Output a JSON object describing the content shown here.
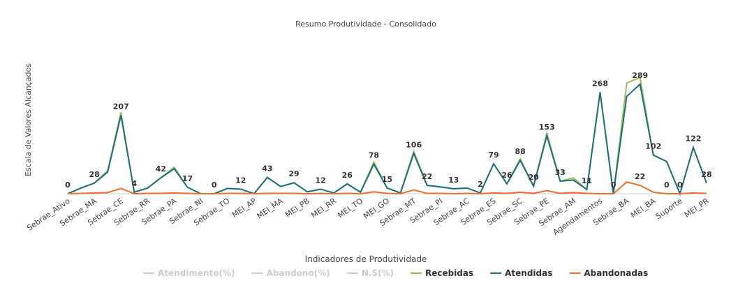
{
  "chart_data": {
    "type": "line",
    "title": "Resumo Produtividade - Consolidado",
    "x_label": "Indicadores de Produtividade",
    "y_label": "Escala de Valores Alcançados",
    "categories": [
      "Sebrae_Ativo",
      null,
      "Sebrae_MA",
      null,
      "Sebrae_CE",
      null,
      "Sebrae_RR",
      null,
      "Sebrae_PA",
      null,
      "Sebrae_NI",
      null,
      "Sebrae_TO",
      null,
      "MEI_AP",
      null,
      "MEI_MA",
      null,
      "MEI_PB",
      null,
      "MEI_RR",
      null,
      "MEI_TO",
      null,
      "MEI_GO",
      null,
      "Sebrae_MT",
      null,
      "Sebrae_PI",
      null,
      "Sebrae_AC",
      null,
      "Sebrae_ES",
      null,
      "Sebrae_SC",
      null,
      "Sebrae_PE",
      null,
      "Sebrae_AM",
      null,
      "Agendamentos",
      null,
      "Sebrae_BA",
      null,
      "MEI_BA",
      null,
      "Suporte",
      null,
      "MEI_PR"
    ],
    "ylim": [
      0,
      320
    ],
    "legend_inactive": [
      "Atendimento(%)",
      "Abandono(%)",
      "N.S(%)"
    ],
    "series": [
      {
        "name": "Recebidas",
        "color": "#9bbb59",
        "values": [
          0,
          15,
          28,
          61,
          215,
          4,
          15,
          42,
          70,
          17,
          0,
          0,
          14,
          12,
          0,
          43,
          19,
          29,
          5,
          12,
          2,
          26,
          4,
          84,
          15,
          2,
          112,
          22,
          18,
          13,
          15,
          2,
          79,
          26,
          92,
          20,
          160,
          33,
          42,
          11,
          268,
          0,
          292,
          307,
          102,
          85,
          0,
          122,
          28
        ]
      },
      {
        "name": "Atendidas",
        "color": "#1f6e7e",
        "values": [
          0,
          15,
          28,
          57,
          207,
          4,
          15,
          42,
          66,
          17,
          0,
          0,
          14,
          12,
          0,
          43,
          19,
          29,
          5,
          12,
          2,
          26,
          4,
          78,
          15,
          2,
          106,
          22,
          18,
          13,
          15,
          2,
          79,
          26,
          88,
          20,
          153,
          33,
          36,
          11,
          268,
          0,
          257,
          289,
          102,
          85,
          0,
          122,
          28
        ],
        "value_labels": [
          0,
          null,
          28,
          null,
          207,
          4,
          null,
          42,
          null,
          17,
          null,
          0,
          null,
          12,
          null,
          43,
          null,
          29,
          null,
          12,
          null,
          26,
          null,
          78,
          15,
          null,
          106,
          22,
          null,
          13,
          null,
          2,
          79,
          26,
          88,
          20,
          153,
          33,
          null,
          11,
          268,
          0,
          null,
          289,
          102,
          null,
          0,
          122,
          28
        ]
      },
      {
        "name": "Abandonadas",
        "color": "#e8702a",
        "values": [
          0,
          1,
          2,
          3,
          14,
          0,
          1,
          1,
          2,
          1,
          0,
          0,
          1,
          1,
          0,
          1,
          1,
          1,
          0,
          1,
          0,
          1,
          0,
          5,
          1,
          0,
          10,
          1,
          1,
          0,
          1,
          0,
          2,
          1,
          4,
          1,
          8,
          1,
          3,
          1,
          0,
          0,
          31,
          22,
          4,
          0,
          0,
          2,
          1
        ],
        "value_labels": [
          null,
          null,
          null,
          null,
          null,
          null,
          null,
          null,
          null,
          null,
          null,
          null,
          null,
          null,
          null,
          null,
          null,
          null,
          null,
          null,
          null,
          null,
          null,
          null,
          null,
          null,
          null,
          null,
          null,
          null,
          null,
          null,
          null,
          null,
          null,
          null,
          null,
          null,
          null,
          null,
          null,
          null,
          null,
          22,
          null,
          0,
          null,
          null,
          null
        ]
      }
    ]
  }
}
